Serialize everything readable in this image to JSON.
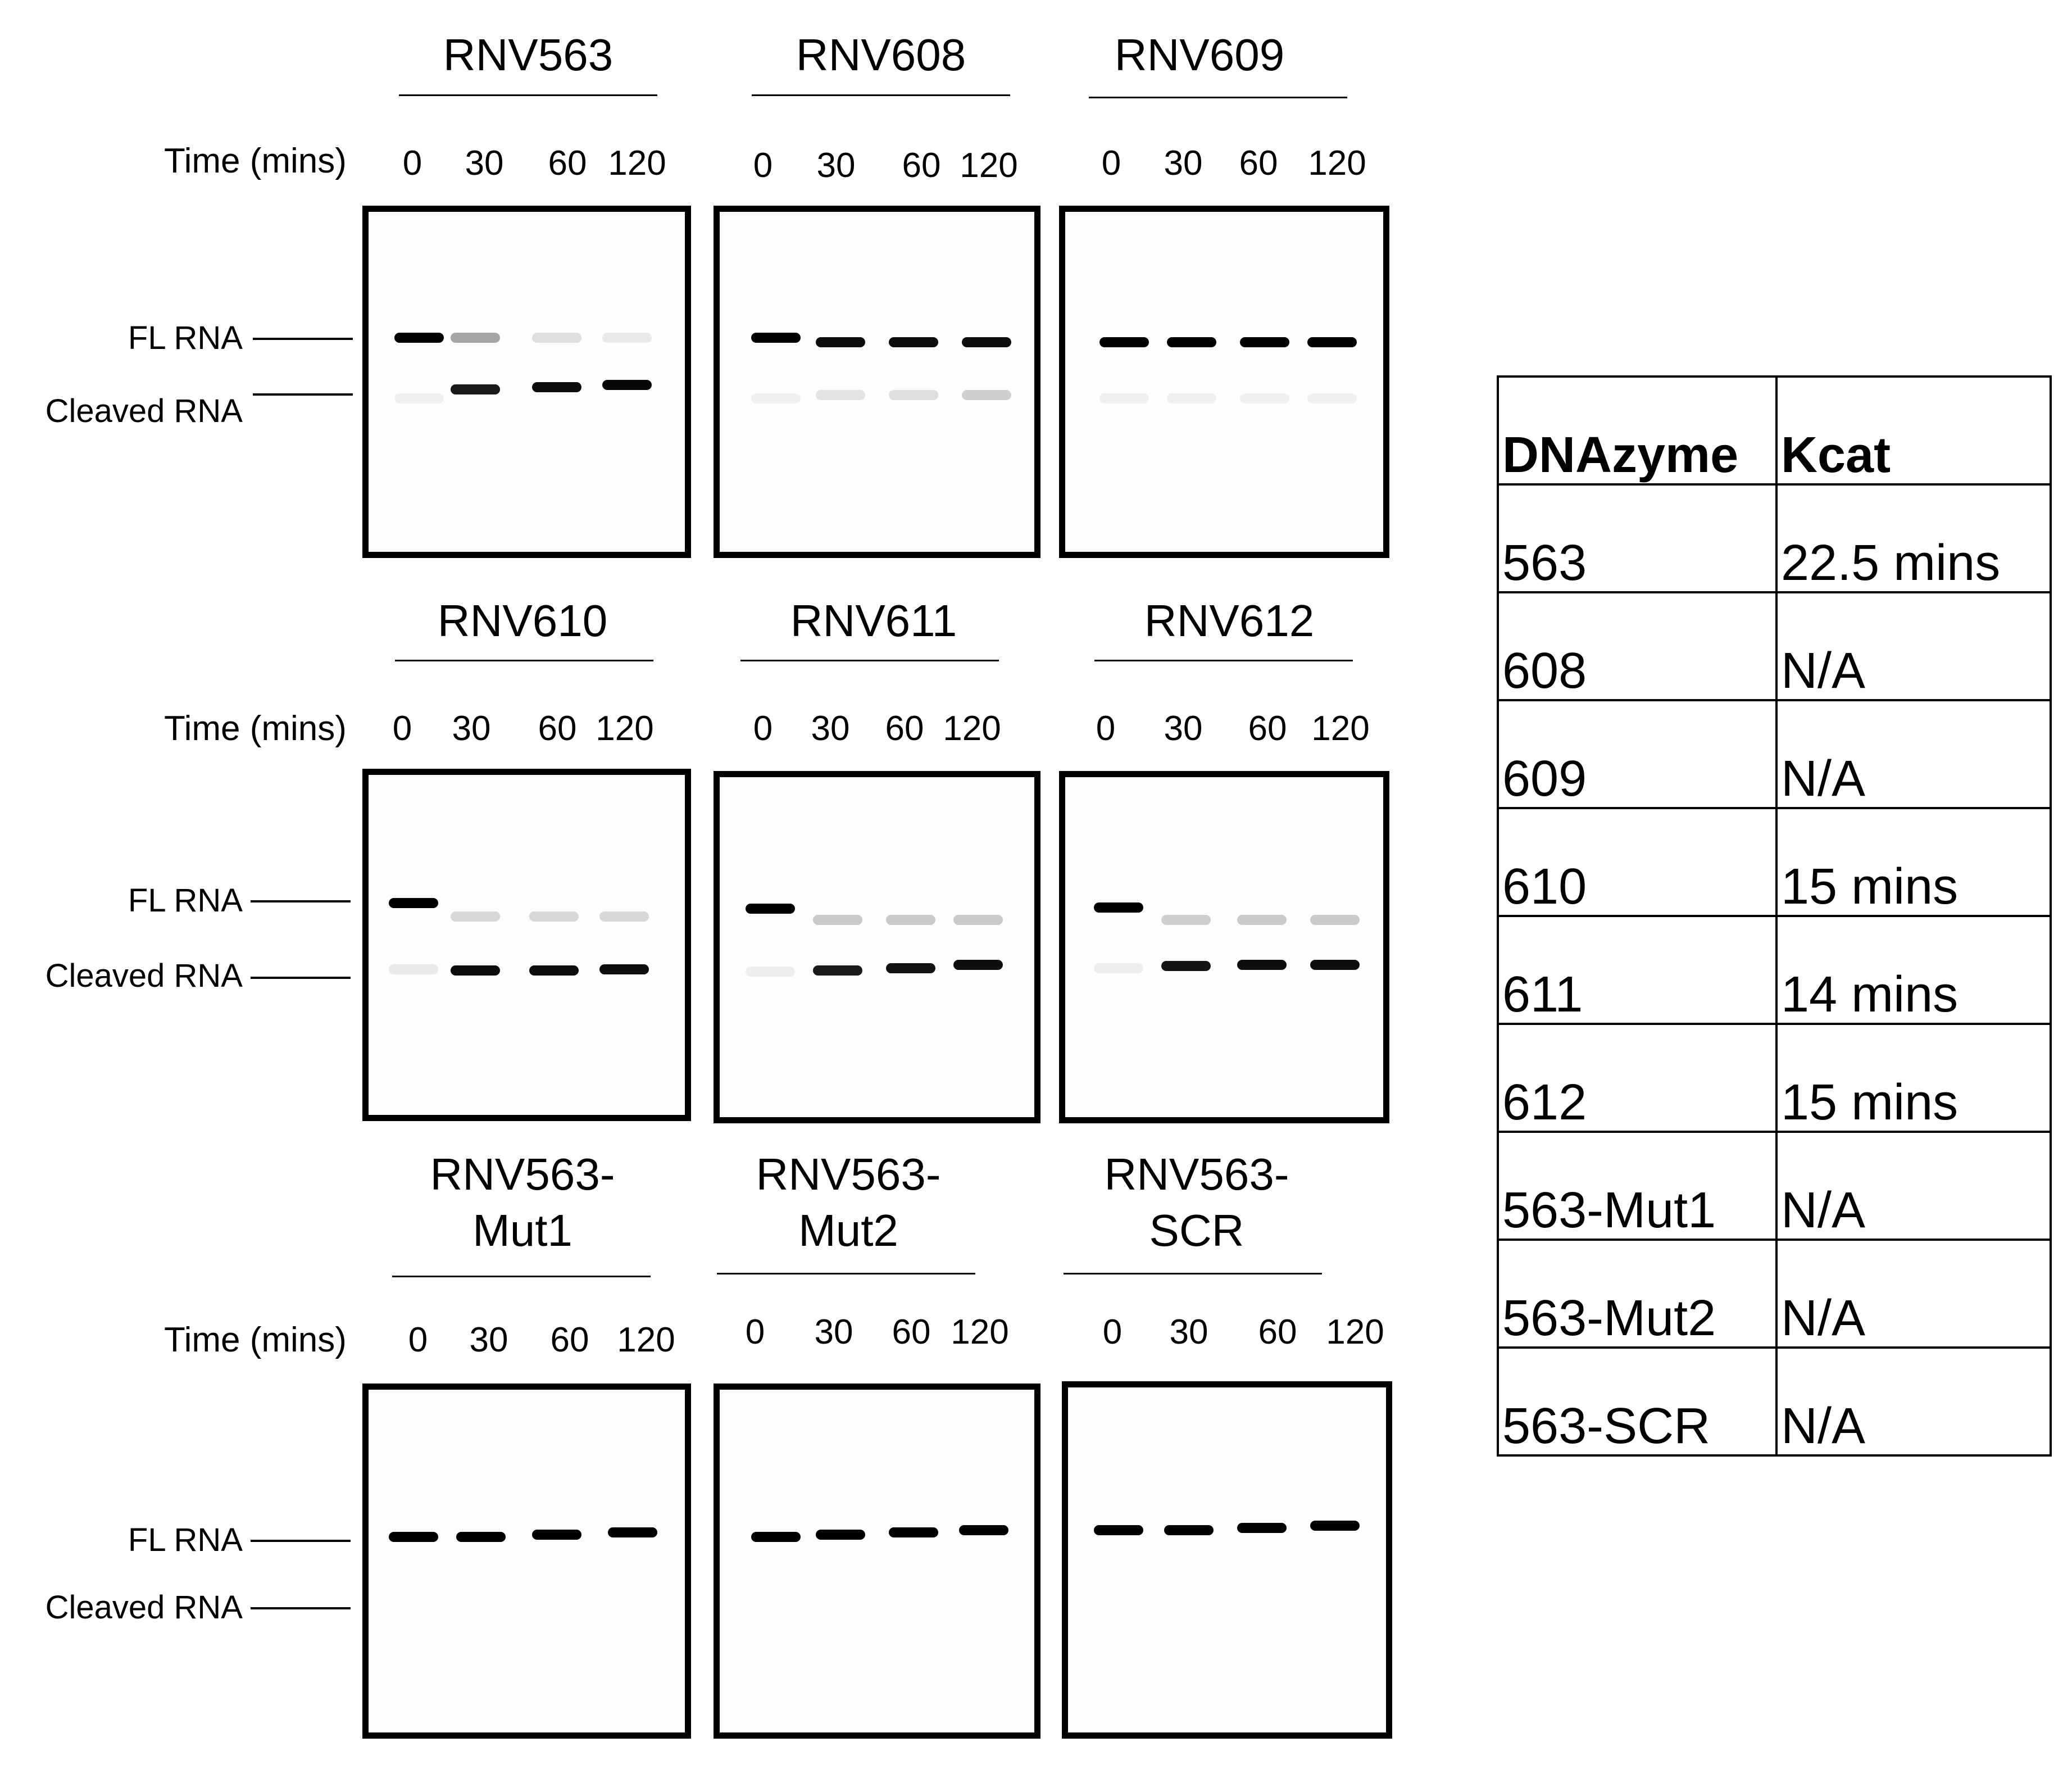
{
  "time_label": "Time (mins)",
  "time_points": [
    "0",
    "30",
    "60",
    "120"
  ],
  "band_labels": {
    "fl": "FL RNA",
    "cleaved": "Cleaved RNA"
  },
  "rows": [
    {
      "gels": [
        {
          "title_line1": "RNV563",
          "title_line2": ""
        },
        {
          "title_line1": "RNV608",
          "title_line2": ""
        },
        {
          "title_line1": "RNV609",
          "title_line2": ""
        }
      ]
    },
    {
      "gels": [
        {
          "title_line1": "RNV610",
          "title_line2": ""
        },
        {
          "title_line1": "RNV611",
          "title_line2": ""
        },
        {
          "title_line1": "RNV612",
          "title_line2": ""
        }
      ]
    },
    {
      "gels": [
        {
          "title_line1": "RNV563-",
          "title_line2": "Mut1"
        },
        {
          "title_line1": "RNV563-",
          "title_line2": "Mut2"
        },
        {
          "title_line1": "RNV563-",
          "title_line2": "SCR"
        }
      ]
    }
  ],
  "band_intensities": {
    "description_free": true,
    "gels": [
      {
        "fl": [
          1.0,
          0.35,
          0.12,
          0.08
        ],
        "cleaved": [
          0.05,
          0.9,
          0.95,
          0.97
        ]
      },
      {
        "fl": [
          1.0,
          0.95,
          0.95,
          0.95
        ],
        "cleaved": [
          0.05,
          0.1,
          0.12,
          0.18
        ]
      },
      {
        "fl": [
          1.0,
          1.0,
          1.0,
          1.0
        ],
        "cleaved": [
          0.05,
          0.05,
          0.05,
          0.05
        ]
      },
      {
        "fl": [
          1.0,
          0.15,
          0.15,
          0.15
        ],
        "cleaved": [
          0.08,
          0.95,
          0.95,
          0.95
        ]
      },
      {
        "fl": [
          1.0,
          0.2,
          0.2,
          0.2
        ],
        "cleaved": [
          0.06,
          0.9,
          0.93,
          0.95
        ]
      },
      {
        "fl": [
          1.0,
          0.18,
          0.2,
          0.2
        ],
        "cleaved": [
          0.06,
          0.92,
          0.95,
          0.95
        ]
      },
      {
        "fl": [
          1.0,
          1.0,
          1.0,
          1.0
        ],
        "cleaved": [
          0.0,
          0.0,
          0.0,
          0.0
        ]
      },
      {
        "fl": [
          1.0,
          1.0,
          1.0,
          1.0
        ],
        "cleaved": [
          0.0,
          0.0,
          0.0,
          0.0
        ]
      },
      {
        "fl": [
          1.0,
          1.0,
          1.0,
          1.0
        ],
        "cleaved": [
          0.0,
          0.0,
          0.0,
          0.0
        ]
      }
    ]
  },
  "table": {
    "headers": [
      "DNAzyme",
      "Kcat"
    ],
    "rows": [
      [
        "563",
        "22.5 mins"
      ],
      [
        "608",
        "N/A"
      ],
      [
        "609",
        "N/A"
      ],
      [
        "610",
        "15 mins"
      ],
      [
        "611",
        "14 mins"
      ],
      [
        "612",
        "15 mins"
      ],
      [
        "563-Mut1",
        "N/A"
      ],
      [
        "563-Mut2",
        "N/A"
      ],
      [
        "563-SCR",
        "N/A"
      ]
    ]
  }
}
